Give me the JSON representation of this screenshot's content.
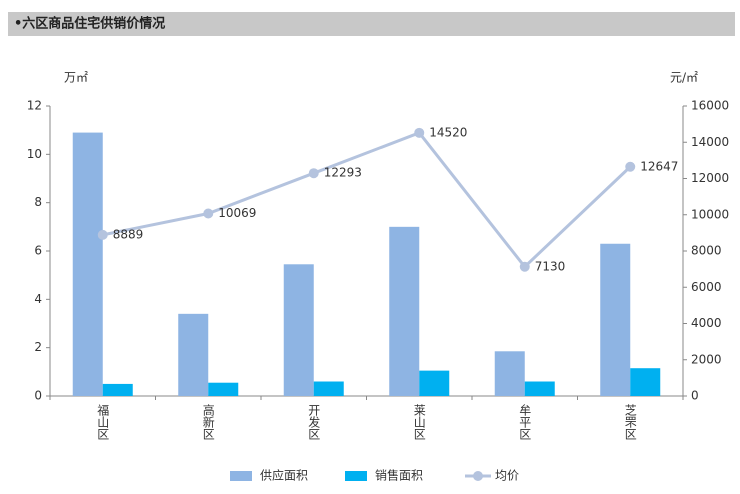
{
  "chart_data": {
    "type": "bar-line",
    "title": "•六区商品住宅供销价情况",
    "y_label": "万㎡",
    "y2_label": "元/㎡",
    "categories": [
      "福山区",
      "高新区",
      "开发区",
      "莱山区",
      "牟平区",
      "芝罘区"
    ],
    "series": [
      {
        "name": "供应面积",
        "type": "bar",
        "color": "#8eb4e3",
        "values": [
          10.9,
          3.4,
          5.45,
          7.0,
          1.85,
          6.3
        ]
      },
      {
        "name": "销售面积",
        "type": "bar",
        "color": "#00b0f0",
        "values": [
          0.5,
          0.55,
          0.6,
          1.05,
          0.6,
          1.15
        ]
      },
      {
        "name": "均价",
        "type": "line",
        "axis": "y2",
        "color": "#b4c3de",
        "values": [
          8889,
          10069,
          12293,
          14520,
          7130,
          12647
        ]
      }
    ],
    "ylim": [
      0,
      12
    ],
    "yticks": [
      0,
      2,
      4,
      6,
      8,
      10,
      12
    ],
    "y2lim": [
      0,
      16000
    ],
    "y2ticks": [
      0,
      2000,
      4000,
      6000,
      8000,
      10000,
      12000,
      14000,
      16000
    ],
    "legend": "bottom"
  }
}
